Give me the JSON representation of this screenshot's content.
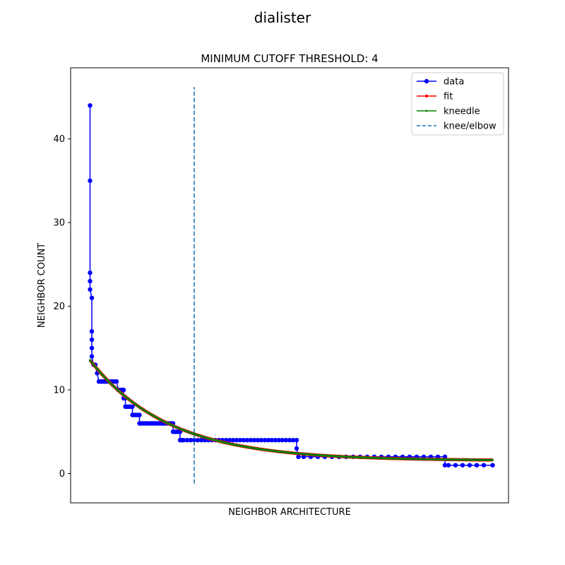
{
  "chart_data": {
    "type": "line",
    "suptitle": "dialister",
    "title": "MINIMUM CUTOFF THRESHOLD: 4",
    "xlabel": "NEIGHBOR ARCHITECTURE",
    "ylabel": "NEIGHBOR COUNT",
    "ylim": [
      -3.5,
      48.5
    ],
    "yticks": [
      0,
      10,
      20,
      30,
      40
    ],
    "xlim": [
      -4,
      244
    ],
    "x_ticks_shown": false,
    "grid": false,
    "legend": {
      "placement": "top-right",
      "entries": [
        "data",
        "fit",
        "kneedle",
        "knee/elbow"
      ]
    },
    "colors": {
      "data": "#0000ff",
      "fit": "#ff0000",
      "kneedle": "#008000",
      "knee": "#1f77b4"
    },
    "knee_x": 66,
    "knee_line_y": [
      -1.2,
      46.2
    ],
    "fit_model": {
      "form": "exponential decay",
      "a": 12,
      "b": 0.0225,
      "c": 1.55,
      "x_start": 7,
      "x_end": 235
    },
    "series": [
      {
        "name": "data",
        "points": [
          [
            7,
            44
          ],
          [
            7,
            35
          ],
          [
            7,
            24
          ],
          [
            7,
            23
          ],
          [
            7,
            22
          ],
          [
            8,
            21
          ],
          [
            8,
            17
          ],
          [
            8,
            16
          ],
          [
            8,
            15
          ],
          [
            8,
            14
          ],
          [
            9,
            13
          ],
          [
            10,
            13
          ],
          [
            11,
            12
          ],
          [
            12,
            11
          ],
          [
            13,
            11
          ],
          [
            14,
            11
          ],
          [
            15,
            11
          ],
          [
            16,
            11
          ],
          [
            17,
            11
          ],
          [
            18,
            11
          ],
          [
            19,
            11
          ],
          [
            20,
            11
          ],
          [
            21,
            11
          ],
          [
            22,
            11
          ],
          [
            23,
            10
          ],
          [
            24,
            10
          ],
          [
            25,
            10
          ],
          [
            26,
            10
          ],
          [
            26,
            9
          ],
          [
            27,
            9
          ],
          [
            27,
            8
          ],
          [
            28,
            8
          ],
          [
            29,
            8
          ],
          [
            30,
            8
          ],
          [
            31,
            8
          ],
          [
            31,
            7
          ],
          [
            32,
            7
          ],
          [
            33,
            7
          ],
          [
            34,
            7
          ],
          [
            35,
            7
          ],
          [
            35,
            6
          ],
          [
            36,
            6
          ],
          [
            37,
            6
          ],
          [
            38,
            6
          ],
          [
            39,
            6
          ],
          [
            40,
            6
          ],
          [
            41,
            6
          ],
          [
            42,
            6
          ],
          [
            43,
            6
          ],
          [
            44,
            6
          ],
          [
            45,
            6
          ],
          [
            46,
            6
          ],
          [
            47,
            6
          ],
          [
            48,
            6
          ],
          [
            49,
            6
          ],
          [
            50,
            6
          ],
          [
            51,
            6
          ],
          [
            52,
            6
          ],
          [
            53,
            6
          ],
          [
            54,
            6
          ],
          [
            54,
            5
          ],
          [
            55,
            5
          ],
          [
            56,
            5
          ],
          [
            57,
            5
          ],
          [
            58,
            5
          ],
          [
            58,
            4
          ],
          [
            59,
            4
          ],
          [
            60,
            4
          ],
          [
            62,
            4
          ],
          [
            64,
            4
          ],
          [
            66,
            4
          ],
          [
            68,
            4
          ],
          [
            70,
            4
          ],
          [
            72,
            4
          ],
          [
            74,
            4
          ],
          [
            76,
            4
          ],
          [
            78,
            4
          ],
          [
            80,
            4
          ],
          [
            82,
            4
          ],
          [
            84,
            4
          ],
          [
            86,
            4
          ],
          [
            88,
            4
          ],
          [
            90,
            4
          ],
          [
            92,
            4
          ],
          [
            94,
            4
          ],
          [
            96,
            4
          ],
          [
            98,
            4
          ],
          [
            100,
            4
          ],
          [
            102,
            4
          ],
          [
            104,
            4
          ],
          [
            106,
            4
          ],
          [
            108,
            4
          ],
          [
            110,
            4
          ],
          [
            112,
            4
          ],
          [
            114,
            4
          ],
          [
            116,
            4
          ],
          [
            118,
            4
          ],
          [
            120,
            4
          ],
          [
            122,
            4
          ],
          [
            124,
            4
          ],
          [
            124,
            3
          ],
          [
            125,
            2
          ],
          [
            128,
            2
          ],
          [
            132,
            2
          ],
          [
            136,
            2
          ],
          [
            140,
            2
          ],
          [
            144,
            2
          ],
          [
            148,
            2
          ],
          [
            152,
            2
          ],
          [
            156,
            2
          ],
          [
            160,
            2
          ],
          [
            164,
            2
          ],
          [
            168,
            2
          ],
          [
            172,
            2
          ],
          [
            176,
            2
          ],
          [
            180,
            2
          ],
          [
            184,
            2
          ],
          [
            188,
            2
          ],
          [
            192,
            2
          ],
          [
            196,
            2
          ],
          [
            200,
            2
          ],
          [
            204,
            2
          ],
          [
            208,
            2
          ],
          [
            208,
            1
          ],
          [
            210,
            1
          ],
          [
            214,
            1
          ],
          [
            218,
            1
          ],
          [
            222,
            1
          ],
          [
            226,
            1
          ],
          [
            230,
            1
          ],
          [
            235,
            1
          ]
        ]
      },
      {
        "name": "fit"
      },
      {
        "name": "kneedle"
      },
      {
        "name": "knee/elbow"
      }
    ]
  }
}
